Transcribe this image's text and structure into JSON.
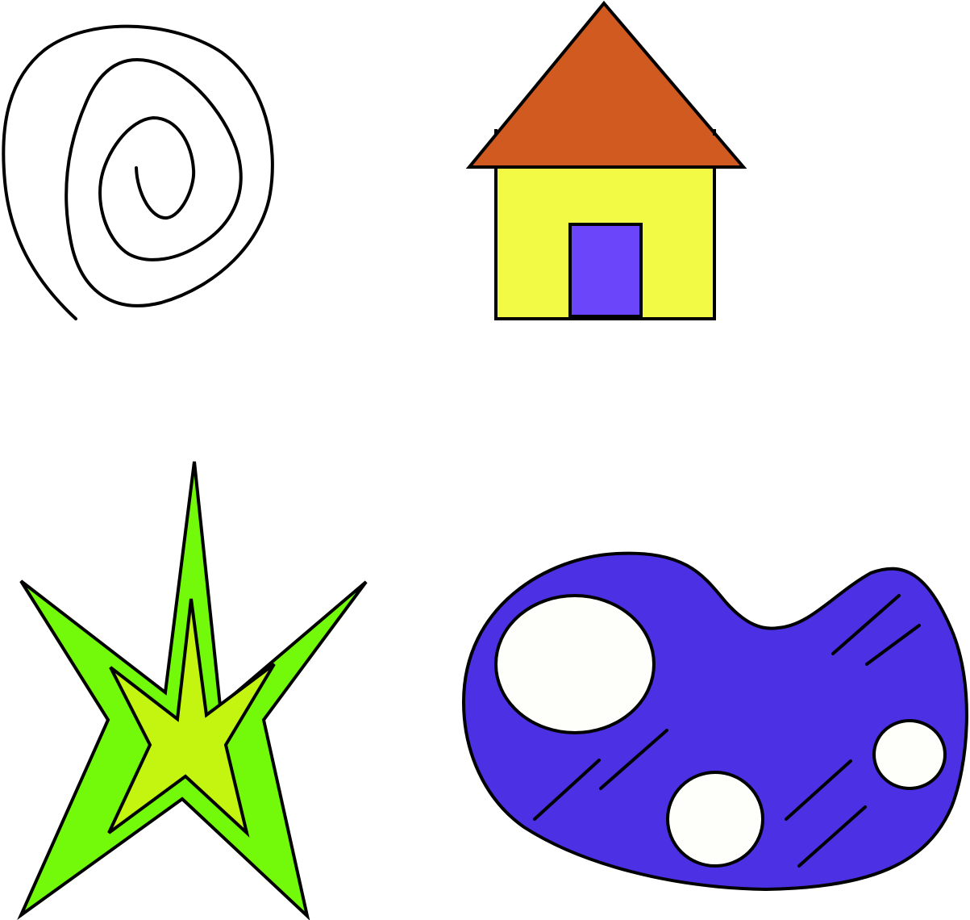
{
  "shapes": [
    {
      "icon": "spiral-icon",
      "stroke": "#000000",
      "fill": "none"
    },
    {
      "icon": "house-icon",
      "roof_color": "#D05A20",
      "wall_color": "#F2FA46",
      "door_color": "#6A45FA",
      "stroke": "#000000"
    },
    {
      "icon": "star-icon",
      "outer_color": "#73FA0A",
      "inner_color": "#C3F510",
      "stroke": "#000000"
    },
    {
      "icon": "blob-icon",
      "body_color": "#4B30E4",
      "spot_color": "#FEFEFA",
      "stroke": "#000000"
    }
  ]
}
